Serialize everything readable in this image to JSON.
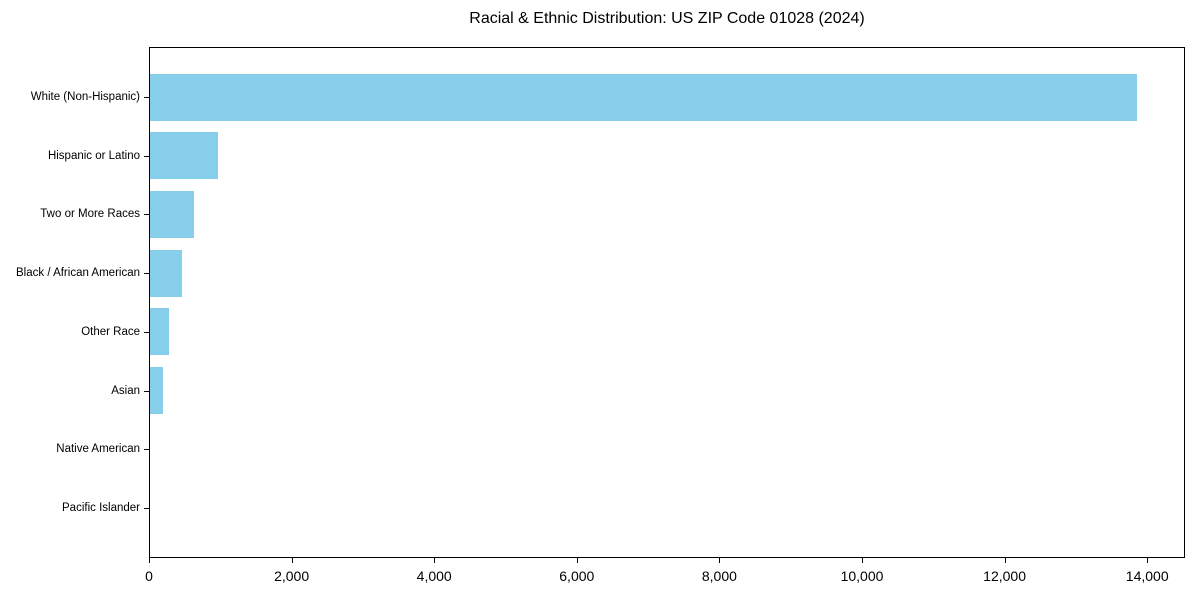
{
  "title": "Racial & Ethnic Distribution: US ZIP Code 01028 (2024)",
  "colors": {
    "bar": "#87CEEB",
    "axis": "#000000",
    "background": "#FFFFFF",
    "text": "#000000"
  },
  "chart_data": {
    "type": "bar",
    "orientation": "horizontal",
    "title": "Racial & Ethnic Distribution: US ZIP Code 01028 (2024)",
    "categories": [
      "White (Non-Hispanic)",
      "Hispanic or Latino",
      "Two or More Races",
      "Black / African American",
      "Other Race",
      "Asian",
      "Native American",
      "Pacific Islander"
    ],
    "values": [
      13840,
      955,
      620,
      445,
      265,
      180,
      0,
      0
    ],
    "xlabel": "",
    "ylabel": "",
    "xlim": [
      0,
      14530
    ],
    "xticks": [
      0,
      2000,
      4000,
      6000,
      8000,
      10000,
      12000,
      14000
    ],
    "xtick_labels": [
      "0",
      "2,000",
      "4,000",
      "6,000",
      "8,000",
      "10,000",
      "12,000",
      "14,000"
    ],
    "grid": false,
    "legend": false,
    "bar_color": "#87CEEB",
    "category_order": "largest-at-top"
  }
}
